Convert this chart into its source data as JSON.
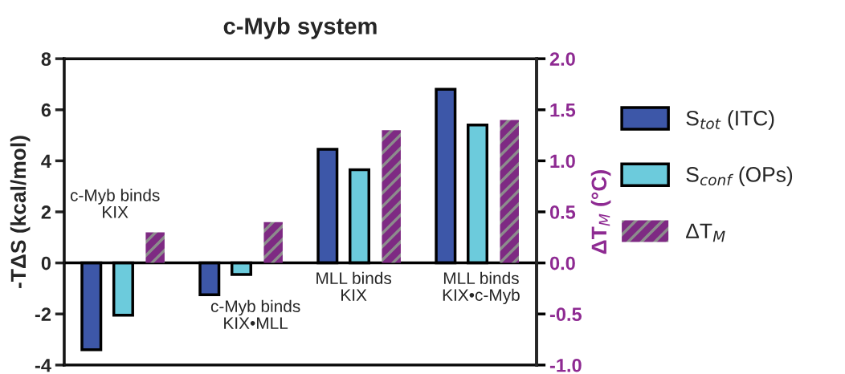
{
  "chart_data": {
    "type": "bar",
    "title": "c-Myb system",
    "ylabel": "-TΔS (kcal/mol)",
    "y2label": "ΔT$_{M}$ (°C)",
    "categories": [
      "c-Myb binds\nKIX",
      "c-Myb binds\nKIX•MLL",
      "MLL binds\nKIX",
      "MLL binds\nKIX•c-Myb"
    ],
    "series": [
      {
        "name": "S$_{tot}$ (ITC)",
        "color": "#3d57a8",
        "values": [
          -3.4,
          -1.25,
          4.45,
          6.8
        ]
      },
      {
        "name": "S$_{conf}$ (OPs)",
        "color": "#6ccbdc",
        "values": [
          -2.05,
          -0.45,
          3.65,
          5.4
        ]
      },
      {
        "name": "ΔT$_{M}$",
        "color": "#7e2a83",
        "axis": "y2",
        "values": [
          0.3,
          0.4,
          1.3,
          1.4
        ]
      }
    ],
    "ylim": [
      -4,
      8
    ],
    "yticks": [
      -4,
      -2,
      0,
      2,
      4,
      6,
      8
    ],
    "y2lim": [
      -1.0,
      2.0
    ],
    "y2ticks": [
      {
        "value": -1,
        "label": "-1.0"
      },
      {
        "value": -0.5,
        "label": "-0.5"
      },
      {
        "value": 0,
        "label": "0.0"
      },
      {
        "value": 0.5,
        "label": "0.5"
      },
      {
        "value": 1,
        "label": "1.0"
      },
      {
        "value": 1.5,
        "label": "1.5"
      },
      {
        "value": 2,
        "label": "2.0"
      }
    ],
    "grid": false,
    "legend": "right"
  }
}
